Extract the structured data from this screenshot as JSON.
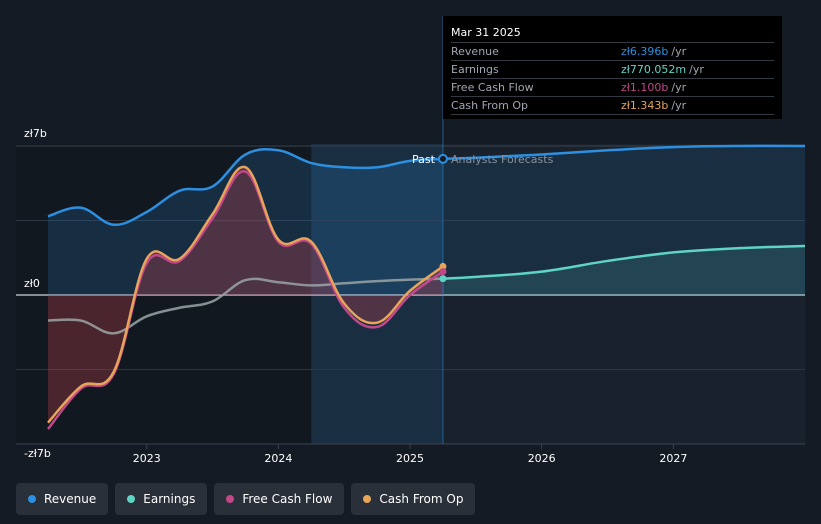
{
  "chart_data": {
    "type": "area",
    "currency_prefix": "zł",
    "y_ticks": [
      {
        "value": 7,
        "label": "zł7b"
      },
      {
        "value": 0,
        "label": "zł0"
      },
      {
        "value": -7,
        "label": "-zł7b"
      }
    ],
    "ylim": [
      -7,
      7
    ],
    "xlim": [
      2022.25,
      2028.0
    ],
    "x_ticks": [
      {
        "value": 2023,
        "label": "2023"
      },
      {
        "value": 2024,
        "label": "2024"
      },
      {
        "value": 2025,
        "label": "2025"
      },
      {
        "value": 2026,
        "label": "2026"
      },
      {
        "value": 2027,
        "label": "2027"
      }
    ],
    "divider_x": 2025.25,
    "divider_labels": {
      "past": "Past",
      "forecast": "Analysts Forecasts"
    },
    "series": [
      {
        "name": "Revenue",
        "color": "#2d8fe0",
        "x": [
          2022.25,
          2022.5,
          2022.75,
          2023.0,
          2023.25,
          2023.5,
          2023.75,
          2024.0,
          2024.25,
          2024.5,
          2024.75,
          2025.0,
          2025.25
        ],
        "values": [
          3.7,
          4.1,
          3.3,
          3.9,
          4.9,
          5.1,
          6.6,
          6.8,
          6.2,
          6.0,
          6.0,
          6.3,
          6.396
        ],
        "forecast_x": [
          2025.25,
          2025.5,
          2026.0,
          2026.5,
          2027.0,
          2027.5,
          2028.0
        ],
        "forecast_values": [
          6.396,
          6.45,
          6.6,
          6.8,
          6.95,
          7.0,
          7.0
        ]
      },
      {
        "name": "Earnings",
        "color": "#5fd4c4",
        "x": [
          2022.25,
          2022.5,
          2022.75,
          2023.0,
          2023.25,
          2023.5,
          2023.75,
          2024.0,
          2024.25,
          2024.5,
          2024.75,
          2025.0,
          2025.25
        ],
        "values": [
          -1.2,
          -1.2,
          -1.8,
          -1.0,
          -0.6,
          -0.3,
          0.7,
          0.6,
          0.45,
          0.55,
          0.65,
          0.72,
          0.77
        ],
        "forecast_x": [
          2025.25,
          2025.5,
          2026.0,
          2026.5,
          2027.0,
          2027.5,
          2028.0
        ],
        "forecast_values": [
          0.77,
          0.85,
          1.1,
          1.6,
          2.0,
          2.2,
          2.3
        ]
      },
      {
        "name": "Free Cash Flow",
        "color": "#c2488a",
        "x": [
          2022.25,
          2022.5,
          2022.75,
          2023.0,
          2023.25,
          2023.5,
          2023.75,
          2024.0,
          2024.25,
          2024.5,
          2024.75,
          2025.0,
          2025.25
        ],
        "values": [
          -6.3,
          -4.4,
          -3.7,
          1.5,
          1.6,
          3.6,
          5.8,
          2.5,
          2.4,
          -0.6,
          -1.5,
          0.0,
          1.1
        ]
      },
      {
        "name": "Cash From Op",
        "color": "#e7a55a",
        "x": [
          2022.25,
          2022.5,
          2022.75,
          2023.0,
          2023.25,
          2023.5,
          2023.75,
          2024.0,
          2024.25,
          2024.5,
          2024.75,
          2025.0,
          2025.25
        ],
        "values": [
          -6.0,
          -4.3,
          -3.6,
          1.7,
          1.7,
          3.8,
          6.0,
          2.6,
          2.5,
          -0.4,
          -1.3,
          0.2,
          1.343
        ]
      }
    ]
  },
  "tooltip": {
    "date": "Mar 31 2025",
    "rows": [
      {
        "label": "Revenue",
        "value": "zł6.396b",
        "unit": "/yr",
        "color": "#2d8fe0"
      },
      {
        "label": "Earnings",
        "value": "zł770.052m",
        "unit": "/yr",
        "color": "#5fd4c4"
      },
      {
        "label": "Free Cash Flow",
        "value": "zł1.100b",
        "unit": "/yr",
        "color": "#c2488a"
      },
      {
        "label": "Cash From Op",
        "value": "zł1.343b",
        "unit": "/yr",
        "color": "#e7a55a"
      }
    ]
  },
  "legend": [
    {
      "label": "Revenue",
      "color": "#2d8fe0"
    },
    {
      "label": "Earnings",
      "color": "#5fd4c4"
    },
    {
      "label": "Free Cash Flow",
      "color": "#c2488a"
    },
    {
      "label": "Cash From Op",
      "color": "#e7a55a"
    }
  ]
}
